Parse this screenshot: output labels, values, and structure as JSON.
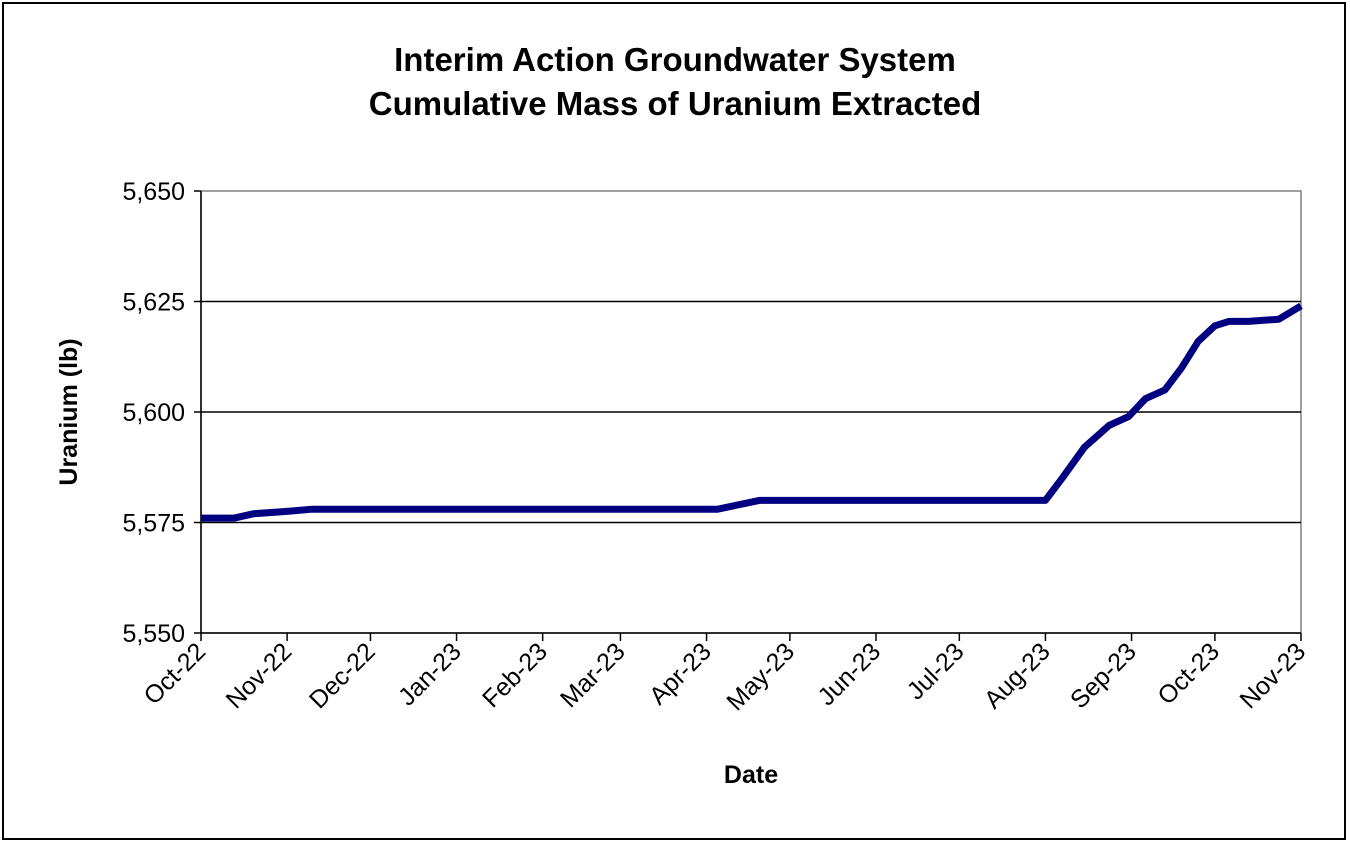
{
  "chart_data": {
    "type": "line",
    "title": "Interim  Action Groundwater System",
    "subtitle": "Cumulative Mass of Uranium Extracted",
    "xlabel": "Date",
    "ylabel": "Uranium (lb)",
    "ylim": [
      5550,
      5650
    ],
    "yticks": [
      "5,550",
      "5,575",
      "5,600",
      "5,625",
      "5,650"
    ],
    "ytick_values": [
      5550,
      5575,
      5600,
      5625,
      5650
    ],
    "xticks": [
      "Oct-22",
      "Nov-22",
      "Dec-22",
      "Jan-23",
      "Feb-23",
      "Mar-23",
      "Apr-23",
      "May-23",
      "Jun-23",
      "Jul-23",
      "Aug-23",
      "Sep-23",
      "Oct-23",
      "Nov-23"
    ],
    "xtick_dates": [
      "2022-10-01",
      "2022-11-01",
      "2022-12-01",
      "2023-01-01",
      "2023-02-01",
      "2023-03-01",
      "2023-04-01",
      "2023-05-01",
      "2023-06-01",
      "2023-07-01",
      "2023-08-01",
      "2023-09-01",
      "2023-10-01",
      "2023-11-01"
    ],
    "grid": "horizontal",
    "line_color": "#000080",
    "series": [
      {
        "x": [
          "2022-10-01",
          "2022-10-13",
          "2022-10-20",
          "2022-11-01",
          "2022-11-10",
          "2022-12-01",
          "2023-01-01",
          "2023-02-01",
          "2023-03-01",
          "2023-04-05",
          "2023-04-20",
          "2023-05-01",
          "2023-06-01",
          "2023-07-01",
          "2023-08-01",
          "2023-08-07",
          "2023-08-15",
          "2023-08-24",
          "2023-08-31",
          "2023-09-06",
          "2023-09-13",
          "2023-09-19",
          "2023-09-25",
          "2023-10-01",
          "2023-10-06",
          "2023-10-13",
          "2023-10-24",
          "2023-11-01"
        ],
        "y": [
          5576,
          5576,
          5577,
          5577.5,
          5578,
          5578,
          5578,
          5578,
          5578,
          5578,
          5580,
          5580,
          5580,
          5580,
          5580,
          5585,
          5592,
          5597,
          5599,
          5603,
          5605,
          5610,
          5616,
          5619.5,
          5620.5,
          5620.5,
          5621,
          5624
        ]
      }
    ]
  }
}
